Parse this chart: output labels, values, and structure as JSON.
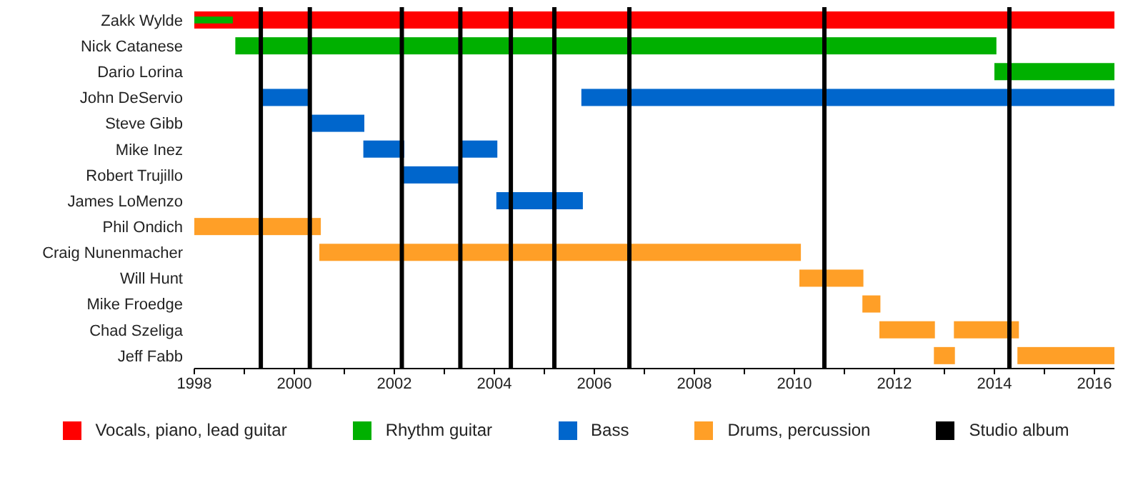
{
  "chart_data": {
    "type": "bar",
    "orientation": "horizontal",
    "categories": [
      "Zakk Wylde",
      "Nick Catanese",
      "Dario Lorina",
      "John DeServio",
      "Steve Gibb",
      "Mike Inez",
      "Robert Trujillo",
      "James LoMenzo",
      "Phil Ondich",
      "Craig Nunenmacher",
      "Will Hunt",
      "Mike Froedge",
      "Chad Szeliga",
      "Jeff Fabb"
    ],
    "series": [
      {
        "name": "Vocals, piano, lead guitar",
        "color": "#ff0000",
        "base": [
          1998,
          null,
          null,
          null,
          null,
          null,
          null,
          null,
          null,
          null,
          null,
          null,
          null,
          null
        ],
        "values": [
          18.4,
          null,
          null,
          null,
          null,
          null,
          null,
          null,
          null,
          null,
          null,
          null,
          null,
          null
        ]
      },
      {
        "name": "Rhythm guitar",
        "color": "#00b000",
        "base": [
          1998,
          1998.82,
          2014.0,
          null,
          null,
          null,
          null,
          null,
          null,
          null,
          null,
          null,
          null,
          null
        ],
        "values": [
          0.77,
          15.22,
          2.4,
          null,
          null,
          null,
          null,
          null,
          null,
          null,
          null,
          null,
          null,
          null
        ]
      },
      {
        "name": "Bass",
        "color": "#0066cc",
        "base": [
          null,
          null,
          null,
          1999.33,
          2000.29,
          2001.38,
          2002.18,
          2004.04,
          null,
          null,
          null,
          null,
          null,
          null
        ],
        "values": [
          null,
          null,
          null,
          0.98,
          1.11,
          0.82,
          1.14,
          1.73,
          null,
          null,
          null,
          null,
          null,
          null
        ]
      },
      {
        "color": "#0066cc",
        "base": [
          null,
          null,
          null,
          2005.74,
          null,
          2003.3,
          null,
          null,
          null,
          null,
          null,
          null,
          null,
          null
        ],
        "values": [
          null,
          null,
          null,
          10.66,
          null,
          0.76,
          null,
          null,
          null,
          null,
          null,
          null,
          null,
          null
        ]
      },
      {
        "name": "Drums, percussion",
        "color": "#ff9f27",
        "base": [
          null,
          null,
          null,
          null,
          null,
          null,
          null,
          null,
          1998,
          2000.5,
          2010.1,
          2011.36,
          2011.7,
          2012.79
        ],
        "values": [
          null,
          null,
          null,
          null,
          null,
          null,
          null,
          null,
          2.53,
          9.63,
          1.28,
          0.36,
          1.11,
          0.42
        ]
      },
      {
        "color": "#ff9f27",
        "base": [
          null,
          null,
          null,
          null,
          null,
          null,
          null,
          null,
          null,
          null,
          null,
          null,
          2013.19,
          2014.46
        ],
        "values": [
          null,
          null,
          null,
          null,
          null,
          null,
          null,
          null,
          null,
          null,
          null,
          null,
          1.3,
          1.94
        ]
      }
    ],
    "xlim": [
      1998,
      2016.4
    ],
    "xticks": [
      1998,
      {
        "value": 1999,
        "label": null
      },
      2000,
      {
        "value": 2001,
        "label": null
      },
      2002,
      {
        "value": 2003,
        "label": null
      },
      2004,
      {
        "value": 2005,
        "label": null
      },
      2006,
      {
        "value": 2007,
        "label": null
      },
      2008,
      {
        "value": 2009,
        "label": null
      },
      2010,
      {
        "value": 2011,
        "label": null
      },
      2012,
      {
        "value": 2013,
        "label": null
      },
      2014,
      {
        "value": 2015,
        "label": null
      },
      2016
    ],
    "ref_lines": [
      {
        "axis": "x",
        "value": 1999.33,
        "label": "Studio album",
        "color": "#000000"
      },
      {
        "axis": "x",
        "value": 2000.31,
        "color": "#000000"
      },
      {
        "axis": "x",
        "value": 2002.15,
        "color": "#000000"
      },
      {
        "axis": "x",
        "value": 2003.32,
        "color": "#000000"
      },
      {
        "axis": "x",
        "value": 2004.33,
        "color": "#000000"
      },
      {
        "axis": "x",
        "value": 2005.2,
        "color": "#000000"
      },
      {
        "axis": "x",
        "value": 2006.7,
        "color": "#000000"
      },
      {
        "axis": "x",
        "value": 2010.6,
        "color": "#000000"
      },
      {
        "axis": "x",
        "value": 2014.3,
        "color": "#000000"
      }
    ],
    "legend": "bottom",
    "grid": false
  }
}
